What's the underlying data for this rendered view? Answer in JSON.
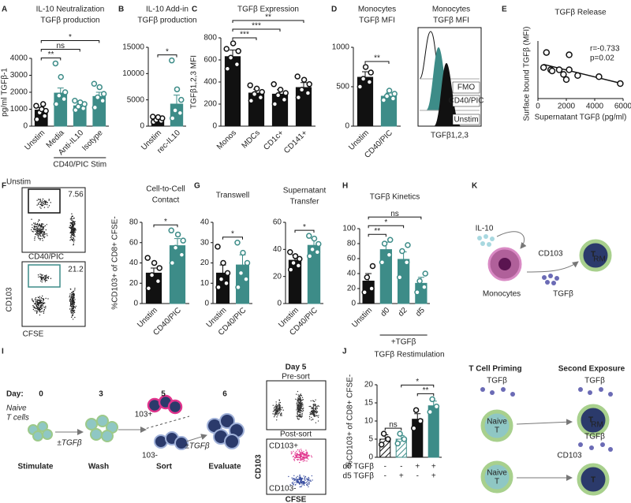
{
  "panel_letters": [
    "A",
    "B",
    "C",
    "D",
    "E",
    "F",
    "G",
    "H",
    "I",
    "J",
    "K"
  ],
  "chart_data": [
    {
      "type": "bar",
      "title": [
        "IL-10 Neutralization",
        "TGFβ production"
      ],
      "ylabel": "pg/ml TGFβ-1",
      "xlabel": "CD40/PIC Stim",
      "categories": [
        "Unstim",
        "Media",
        "Anti-IL10",
        "Isotype"
      ],
      "values": [
        950,
        1950,
        1200,
        1750
      ],
      "errors": [
        150,
        300,
        120,
        250
      ],
      "points": [
        [
          400,
          600,
          800,
          900,
          1000,
          1200,
          1300
        ],
        [
          1300,
          1600,
          1800,
          2000,
          2900,
          3700
        ],
        [
          950,
          1050,
          1150,
          1300,
          1400,
          1500
        ],
        [
          1100,
          1500,
          1700,
          1900,
          2300,
          2500
        ]
      ],
      "colors": [
        "#111111",
        "#3d8c88",
        "#3d8c88",
        "#3d8c88"
      ],
      "ylim": [
        0,
        4000
      ],
      "yticks": [
        0,
        1000,
        2000,
        3000,
        4000
      ],
      "sig": [
        {
          "label": "**",
          "from": 0,
          "to": 1
        },
        {
          "label": "ns",
          "from": 0,
          "to": 2
        },
        {
          "label": "*",
          "from": 0,
          "to": 3
        }
      ]
    },
    {
      "type": "bar",
      "title": [
        "IL-10 Add-in",
        "TGFβ production"
      ],
      "categories": [
        "Unstim",
        "rec-IL10"
      ],
      "values": [
        1300,
        4200
      ],
      "errors": [
        400,
        1700
      ],
      "points": [
        [
          800,
          1000,
          1200,
          1500,
          1700,
          1800
        ],
        [
          1500,
          2500,
          3000,
          5000,
          7000,
          12500
        ]
      ],
      "colors": [
        "#111111",
        "#3d8c88"
      ],
      "ylim": [
        0,
        15000
      ],
      "yticks": [
        0,
        5000,
        10000,
        15000
      ],
      "sig": [
        {
          "label": "*",
          "from": 0,
          "to": 1
        }
      ]
    },
    {
      "type": "bar",
      "title": [
        "TGFβ Expression"
      ],
      "ylabel": "TGFβ1,2,3 MFI",
      "categories": [
        "Monos",
        "MDCs",
        "CD1c+",
        "CD141+"
      ],
      "values": [
        630,
        300,
        290,
        350
      ],
      "errors": [
        60,
        35,
        40,
        45
      ],
      "points": [
        [
          520,
          560,
          620,
          680,
          750,
          700
        ],
        [
          230,
          260,
          290,
          310,
          340,
          370
        ],
        [
          200,
          240,
          280,
          300,
          330,
          380
        ],
        [
          260,
          300,
          330,
          380,
          420,
          450
        ]
      ],
      "colors": [
        "#111111",
        "#111111",
        "#111111",
        "#111111"
      ],
      "ylim": [
        0,
        800
      ],
      "yticks": [
        0,
        200,
        400,
        600,
        800
      ],
      "sig": [
        {
          "label": "***",
          "from": 0,
          "to": 1
        },
        {
          "label": "***",
          "from": 0,
          "to": 2
        },
        {
          "label": "**",
          "from": 0,
          "to": 3
        }
      ]
    },
    {
      "type": "bar",
      "title": [
        "Monocytes",
        "TGFβ MFI"
      ],
      "categories": [
        "Unstim",
        "CD40/PIC"
      ],
      "values": [
        620,
        380
      ],
      "errors": [
        70,
        40
      ],
      "points": [
        [
          500,
          560,
          600,
          680,
          750
        ],
        [
          330,
          350,
          380,
          410,
          450
        ]
      ],
      "colors": [
        "#111111",
        "#3d8c88"
      ],
      "ylim": [
        0,
        1000
      ],
      "yticks": [
        0,
        500,
        1000
      ],
      "sig": [
        {
          "label": "**",
          "from": 0,
          "to": 1
        }
      ]
    },
    {
      "type": "scatter",
      "title": [
        "TGFβ Release"
      ],
      "ylabel": "Surface bound TGFβ (MFI)",
      "xlabel": "Supernatant TGFβ (pg/ml)",
      "x": [
        600,
        400,
        900,
        1000,
        1500,
        1800,
        2000,
        2200,
        2200,
        2800,
        4300,
        5800
      ],
      "y": [
        800,
        540,
        500,
        480,
        500,
        420,
        330,
        760,
        500,
        400,
        380,
        260
      ],
      "xlim": [
        0,
        6000
      ],
      "xticks": [
        0,
        2000,
        4000,
        6000
      ],
      "ylim": [
        0,
        1000
      ],
      "annotations": [
        "r=-0.733",
        "p=0.02"
      ]
    },
    {
      "type": "bar",
      "title": [
        "Cell-to-Cell",
        "Contact"
      ],
      "ylabel": "%CD103+ of CD8+ CFSE-",
      "categories": [
        "Unstim",
        "CD40/PIC"
      ],
      "values": [
        30,
        57
      ],
      "errors": [
        5,
        7
      ],
      "points": [
        [
          15,
          22,
          28,
          35,
          40,
          45
        ],
        [
          40,
          48,
          55,
          62,
          68,
          72
        ]
      ],
      "colors": [
        "#111111",
        "#3d8c88"
      ],
      "ylim": [
        0,
        80
      ],
      "yticks": [
        0,
        20,
        40,
        60,
        80
      ],
      "sig": [
        {
          "label": "*",
          "from": 0,
          "to": 1
        }
      ]
    },
    {
      "type": "bar",
      "title": [
        "Transwell"
      ],
      "categories": [
        "Unstim",
        "CD40/PIC"
      ],
      "values": [
        15,
        19
      ],
      "errors": [
        4,
        5
      ],
      "points": [
        [
          8,
          10,
          12,
          15,
          20,
          28
        ],
        [
          8,
          12,
          15,
          20,
          25,
          30
        ]
      ],
      "colors": [
        "#111111",
        "#3d8c88"
      ],
      "ylim": [
        0,
        40
      ],
      "yticks": [
        0,
        10,
        20,
        30,
        40
      ],
      "sig": [
        {
          "label": "*",
          "from": 0,
          "to": 1
        }
      ]
    },
    {
      "type": "bar",
      "title": [
        "Supernatant",
        "Transfer"
      ],
      "categories": [
        "Unstim",
        "CD40/PIC"
      ],
      "values": [
        32,
        43
      ],
      "errors": [
        4,
        5
      ],
      "points": [
        [
          25,
          28,
          30,
          33,
          35,
          38
        ],
        [
          35,
          38,
          40,
          44,
          48,
          50
        ]
      ],
      "colors": [
        "#111111",
        "#3d8c88"
      ],
      "ylim": [
        0,
        60
      ],
      "yticks": [
        0,
        20,
        40,
        60
      ],
      "sig": [
        {
          "label": "*",
          "from": 0,
          "to": 1
        }
      ]
    },
    {
      "type": "bar",
      "title": [
        "TGFβ Kinetics"
      ],
      "xlabel": "+TGFβ",
      "categories": [
        "Unstim",
        "d0",
        "d2",
        "d5"
      ],
      "values": [
        30,
        72,
        59,
        27
      ],
      "errors": [
        10,
        10,
        10,
        8
      ],
      "points": [
        [
          15,
          20,
          35,
          50
        ],
        [
          55,
          65,
          80,
          85
        ],
        [
          35,
          55,
          70,
          78
        ],
        [
          15,
          22,
          30,
          40
        ]
      ],
      "colors": [
        "#111111",
        "#3d8c88",
        "#3d8c88",
        "#3d8c88"
      ],
      "ylim": [
        0,
        100
      ],
      "yticks": [
        0,
        20,
        40,
        60,
        80,
        100
      ],
      "sig": [
        {
          "label": "**",
          "from": 0,
          "to": 1
        },
        {
          "label": "*",
          "from": 0,
          "to": 2
        },
        {
          "label": "ns",
          "from": 0,
          "to": 3
        }
      ]
    },
    {
      "type": "bar",
      "title": [
        "TGFβ Restimulation"
      ],
      "ylabel": "%CD103+ of CD8+ CFSE-",
      "categories": [
        null,
        null,
        null,
        null
      ],
      "values": [
        5,
        5,
        10.5,
        14.2
      ],
      "errors": [
        1.2,
        1,
        1.5,
        1.3
      ],
      "points": [
        [
          3.5,
          5,
          6.5
        ],
        [
          3.8,
          5,
          6.5
        ],
        [
          8,
          10,
          13
        ],
        [
          12.5,
          14,
          16
        ]
      ],
      "colors": [
        "#111111",
        "#3d8c88",
        "#111111",
        "#3d8c88"
      ],
      "hatched": [
        true,
        true,
        false,
        false
      ],
      "ylim": [
        0,
        20
      ],
      "yticks": [
        0,
        5,
        10,
        15,
        20
      ],
      "conditions": [
        {
          "label": "d0 TGFβ",
          "marks": [
            "-",
            "-",
            "+",
            "+"
          ]
        },
        {
          "label": "d5 TGFβ",
          "marks": [
            "-",
            "+",
            "-",
            "+"
          ]
        }
      ],
      "sig": [
        {
          "label": "ns",
          "from": 0,
          "to": 1
        },
        {
          "label": "**",
          "from": 2,
          "to": 3
        },
        {
          "label": "*",
          "from": 1,
          "to": 3
        }
      ]
    }
  ],
  "panel_d_histogram": {
    "title": [
      "Monocytes",
      "TGFβ MFI"
    ],
    "xlabel": "TGFβ1,2,3",
    "legend": [
      "FMO",
      "CD40/PIC",
      "Unstim"
    ]
  },
  "panel_f_flow": {
    "labels": [
      "Unstim",
      "CD40/PIC"
    ],
    "gates": [
      7.56,
      21.2
    ],
    "ylabel": "CD103",
    "xlabel": "CFSE"
  },
  "panel_i": {
    "day_label": "Day:",
    "days": [
      0,
      3,
      5,
      6
    ],
    "start_cells": [
      "Naive",
      "T cells"
    ],
    "steps": [
      "Stimulate",
      "Wash",
      "Sort",
      "Evaluate"
    ],
    "treatments": [
      "±TGFβ",
      "±TGFβ"
    ],
    "sort_gates": [
      "103+",
      "103-"
    ],
    "facs": {
      "title": "Day 5",
      "panels": [
        "Pre-sort",
        "Post-sort"
      ],
      "gates": [
        "CD103+",
        "CD103-"
      ],
      "ylabel": "CD103",
      "xlabel": "CFSE"
    }
  },
  "panel_k": {
    "top": {
      "cytokine": "IL-10",
      "marker": "CD103",
      "cell": "T",
      "cell_sub": "RM",
      "cell_type": "Monocytes",
      "product": "TGFβ"
    },
    "bottom": {
      "headers": [
        "T Cell Priming",
        "Second Exposure"
      ],
      "signals": [
        "TGFβ",
        "TGFβ",
        "TGFβ"
      ],
      "naive": [
        "Naive",
        "T"
      ],
      "memory": [
        "T",
        "RM"
      ],
      "marker": "CD103",
      "plain": "T"
    }
  }
}
